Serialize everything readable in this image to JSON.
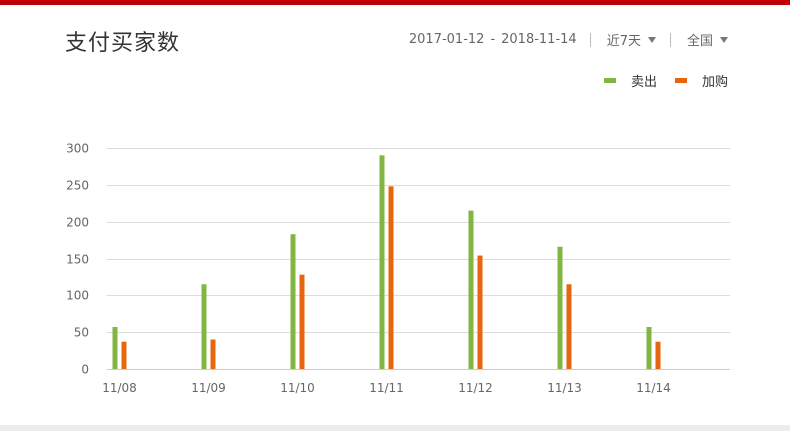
{
  "title": "支付买家数",
  "toolbar": {
    "start_date": "2017-01-12",
    "separator": "-",
    "end_date": "2018-11-14",
    "period": "近7天",
    "region": "全国"
  },
  "colors": {
    "series_sell": "#82b541",
    "series_cart": "#e8650f"
  },
  "chart_data": {
    "type": "bar",
    "categories": [
      "11/08",
      "11/09",
      "11/10",
      "11/11",
      "11/12",
      "11/13",
      "11/14"
    ],
    "series": [
      {
        "name": "卖出",
        "values": [
          57,
          115,
          183,
          290,
          215,
          166,
          57
        ]
      },
      {
        "name": "加购",
        "values": [
          37,
          40,
          128,
          248,
          154,
          115,
          37
        ]
      }
    ],
    "ylim": [
      0,
      300
    ],
    "yticks": [
      0,
      50,
      100,
      150,
      200,
      250,
      300
    ],
    "grid": true,
    "legend": "top-right",
    "title": "",
    "xlabel": "",
    "ylabel": ""
  }
}
